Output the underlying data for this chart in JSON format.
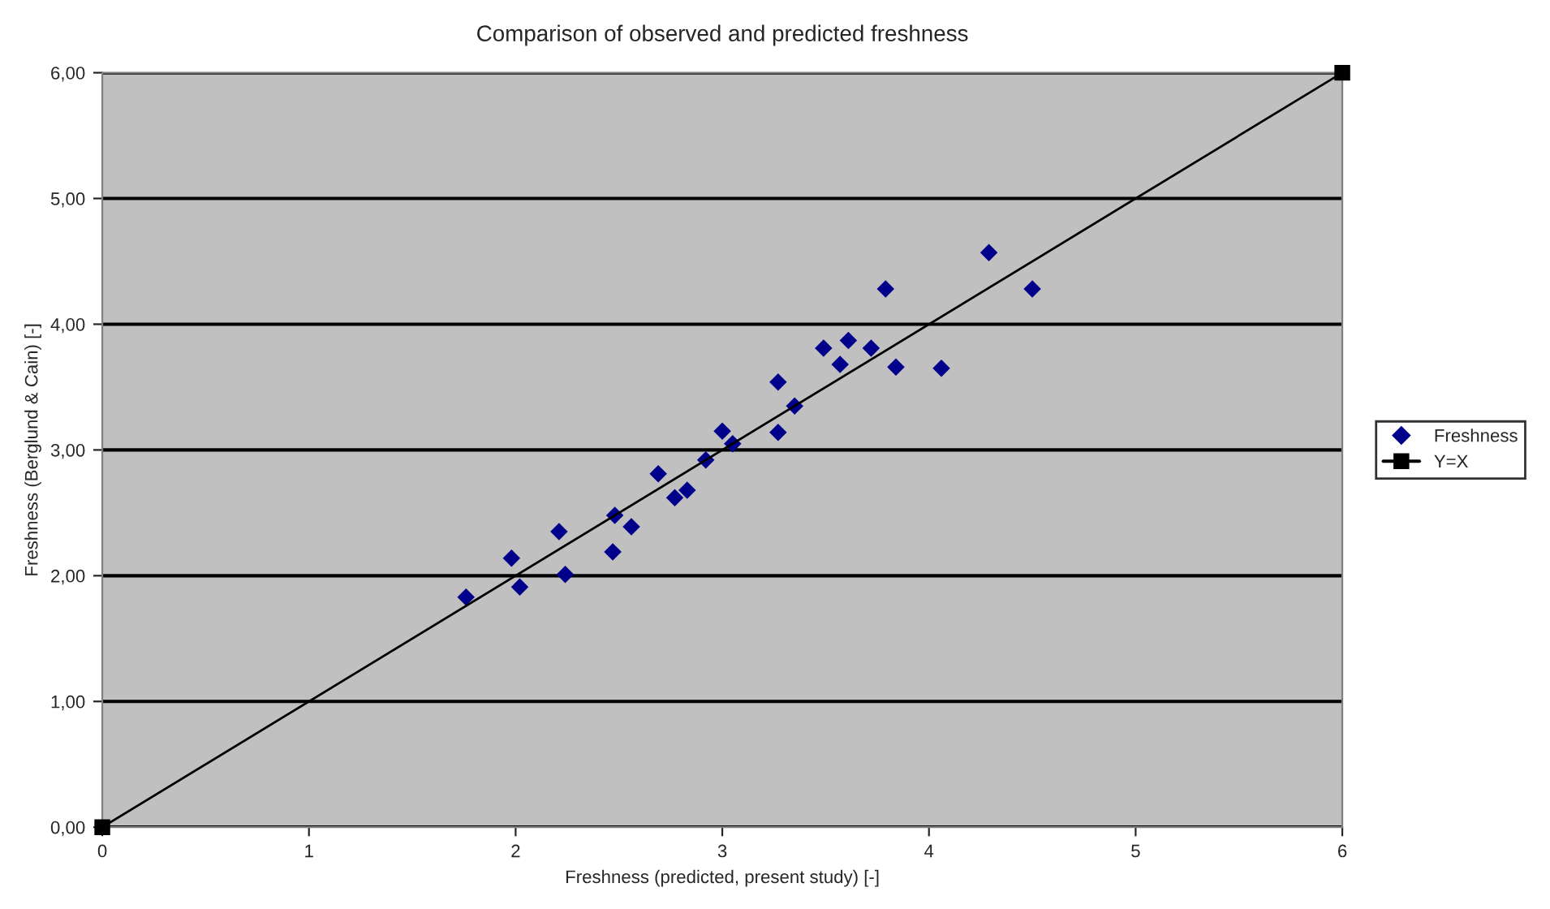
{
  "chart_data": {
    "type": "scatter",
    "title": "Comparison of observed and predicted freshness",
    "xlabel": "Freshness (predicted, present study) [-]",
    "ylabel": "Freshness (Berglund & Cain) [-]",
    "series": [
      {
        "name": "Freshness",
        "color": "#00008b",
        "marker": "diamond",
        "x": [
          1.76,
          1.98,
          2.02,
          2.21,
          2.24,
          2.47,
          2.48,
          2.56,
          2.69,
          2.77,
          2.83,
          2.92,
          3.0,
          3.05,
          3.27,
          3.27,
          3.35,
          3.49,
          3.57,
          3.61,
          3.72,
          3.79,
          3.84,
          4.06,
          4.29,
          4.5
        ],
        "values": [
          1.83,
          2.14,
          1.91,
          2.35,
          2.01,
          2.19,
          2.48,
          2.39,
          2.81,
          2.62,
          2.68,
          2.92,
          3.15,
          3.05,
          3.14,
          3.54,
          3.35,
          3.81,
          3.68,
          3.87,
          3.81,
          4.28,
          3.66,
          3.65,
          4.57,
          4.28
        ]
      },
      {
        "name": "Y=X",
        "type": "line",
        "color": "#000000",
        "marker": "square",
        "x": [
          0,
          6
        ],
        "values": [
          0,
          6
        ]
      }
    ],
    "xlim": [
      0,
      6
    ],
    "xticks": [
      0,
      1,
      2,
      3,
      4,
      5,
      6
    ],
    "ylim": [
      0,
      6
    ],
    "yticks": [
      {
        "value": 0,
        "label": "0,00"
      },
      {
        "value": 1,
        "label": "1,00"
      },
      {
        "value": 2,
        "label": "2,00"
      },
      {
        "value": 3,
        "label": "3,00"
      },
      {
        "value": 4,
        "label": "4,00"
      },
      {
        "value": 5,
        "label": "5,00"
      },
      {
        "value": 6,
        "label": "6,00"
      }
    ],
    "grid": "y",
    "legend": "right"
  }
}
